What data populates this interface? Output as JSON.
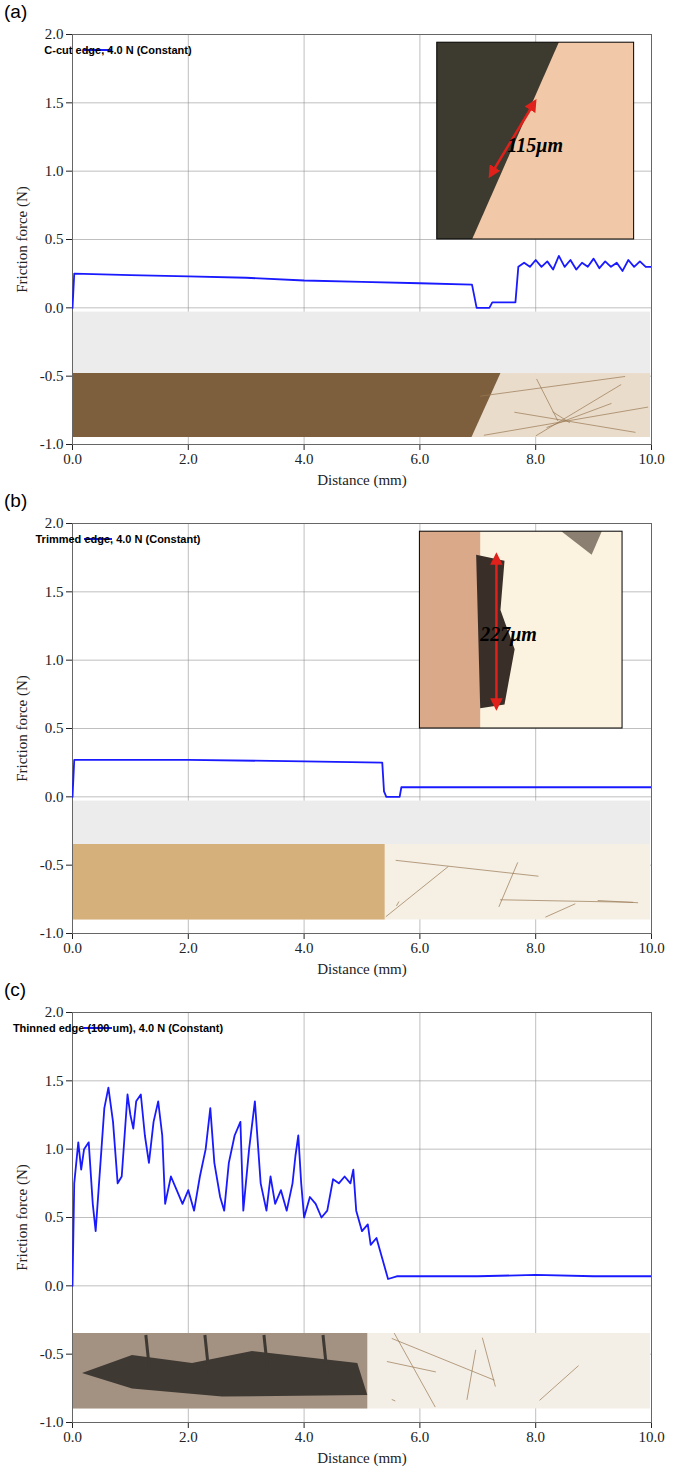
{
  "chart_data": [
    {
      "panel": "(a)",
      "type": "line",
      "xlabel": "Distance (mm)",
      "ylabel": "Friction force (N)",
      "xlim": [
        0,
        10
      ],
      "ylim": [
        -1,
        2
      ],
      "xticks": [
        {
          "value": 0,
          "label": "0.0"
        },
        {
          "value": 2,
          "label": "2.0"
        },
        {
          "value": 4,
          "label": "4.0"
        },
        {
          "value": 6,
          "label": "6.0"
        },
        {
          "value": 8,
          "label": "8.0"
        },
        {
          "value": 10,
          "label": "10.0"
        }
      ],
      "yticks": [
        {
          "value": -1,
          "label": "-1.0"
        },
        {
          "value": -0.5,
          "label": "-0.5"
        },
        {
          "value": 0,
          "label": "0.0"
        },
        {
          "value": 0.5,
          "label": "0.5"
        },
        {
          "value": 1,
          "label": "1.0"
        },
        {
          "value": 1.5,
          "label": "1.5"
        },
        {
          "value": 2,
          "label": "2.0"
        }
      ],
      "grid": true,
      "legend": "upper left",
      "annotation": "115μm",
      "x": [
        0,
        0.03,
        1,
        2,
        3,
        4,
        5,
        6,
        6.9,
        6.98,
        7.2,
        7.25,
        7.65,
        7.7,
        7.8,
        7.9,
        8.0,
        8.1,
        8.2,
        8.3,
        8.4,
        8.5,
        8.6,
        8.7,
        8.8,
        8.9,
        9.0,
        9.1,
        9.2,
        9.3,
        9.4,
        9.5,
        9.6,
        9.7,
        9.8,
        9.9,
        10
      ],
      "series": [
        {
          "name": "C-cut edge, 4.0 N (Constant)",
          "color": "#1a1aff",
          "values": [
            0,
            0.25,
            0.24,
            0.23,
            0.22,
            0.2,
            0.19,
            0.18,
            0.17,
            0.0,
            0.0,
            0.04,
            0.04,
            0.3,
            0.33,
            0.3,
            0.35,
            0.3,
            0.34,
            0.28,
            0.38,
            0.3,
            0.35,
            0.28,
            0.33,
            0.3,
            0.36,
            0.29,
            0.34,
            0.3,
            0.33,
            0.27,
            0.35,
            0.3,
            0.34,
            0.3,
            0.3
          ]
        }
      ]
    },
    {
      "panel": "(b)",
      "type": "line",
      "xlabel": "Distance (mm)",
      "ylabel": "Friction force (N)",
      "xlim": [
        0,
        10
      ],
      "ylim": [
        -1,
        2
      ],
      "xticks": [
        {
          "value": 0,
          "label": "0.0"
        },
        {
          "value": 2,
          "label": "2.0"
        },
        {
          "value": 4,
          "label": "4.0"
        },
        {
          "value": 6,
          "label": "6.0"
        },
        {
          "value": 8,
          "label": "8.0"
        },
        {
          "value": 10,
          "label": "10.0"
        }
      ],
      "yticks": [
        {
          "value": -1,
          "label": "-1.0"
        },
        {
          "value": -0.5,
          "label": "-0.5"
        },
        {
          "value": 0,
          "label": "0.0"
        },
        {
          "value": 0.5,
          "label": "0.5"
        },
        {
          "value": 1,
          "label": "1.0"
        },
        {
          "value": 1.5,
          "label": "1.5"
        },
        {
          "value": 2,
          "label": "2.0"
        }
      ],
      "grid": true,
      "legend": "upper left",
      "annotation": "227μm",
      "x": [
        0,
        0.03,
        2,
        4,
        5.35,
        5.38,
        5.42,
        5.65,
        5.68,
        10
      ],
      "series": [
        {
          "name": "Trimmed edge, 4.0 N (Constant)",
          "color": "#1a1aff",
          "values": [
            0,
            0.27,
            0.27,
            0.26,
            0.25,
            0.04,
            0.0,
            0.0,
            0.07,
            0.07
          ]
        }
      ]
    },
    {
      "panel": "(c)",
      "type": "line",
      "xlabel": "Distance (mm)",
      "ylabel": "Friction force (N)",
      "xlim": [
        0,
        10
      ],
      "ylim": [
        -1,
        2
      ],
      "xticks": [
        {
          "value": 0,
          "label": "0.0"
        },
        {
          "value": 2,
          "label": "2.0"
        },
        {
          "value": 4,
          "label": "4.0"
        },
        {
          "value": 6,
          "label": "6.0"
        },
        {
          "value": 8,
          "label": "8.0"
        },
        {
          "value": 10,
          "label": "10.0"
        }
      ],
      "yticks": [
        {
          "value": -1,
          "label": "-1.0"
        },
        {
          "value": -0.5,
          "label": "-0.5"
        },
        {
          "value": 0,
          "label": "0.0"
        },
        {
          "value": 0.5,
          "label": "0.5"
        },
        {
          "value": 1,
          "label": "1.0"
        },
        {
          "value": 1.5,
          "label": "1.5"
        },
        {
          "value": 2,
          "label": "2.0"
        }
      ],
      "grid": true,
      "legend": "upper left",
      "x": [
        0,
        0.03,
        0.1,
        0.15,
        0.2,
        0.28,
        0.35,
        0.4,
        0.45,
        0.5,
        0.55,
        0.62,
        0.7,
        0.78,
        0.85,
        0.95,
        1.0,
        1.05,
        1.1,
        1.18,
        1.25,
        1.32,
        1.4,
        1.48,
        1.55,
        1.6,
        1.7,
        1.8,
        1.9,
        2.0,
        2.1,
        2.2,
        2.3,
        2.38,
        2.45,
        2.55,
        2.62,
        2.7,
        2.8,
        2.9,
        2.95,
        3.05,
        3.15,
        3.25,
        3.35,
        3.42,
        3.5,
        3.6,
        3.7,
        3.8,
        3.85,
        3.9,
        3.95,
        4.0,
        4.1,
        4.2,
        4.3,
        4.4,
        4.5,
        4.6,
        4.7,
        4.8,
        4.85,
        4.9,
        5.0,
        5.1,
        5.15,
        5.25,
        5.35,
        5.45,
        5.6,
        7.0,
        8.0,
        9.0,
        10
      ],
      "series": [
        {
          "name": "Thinned edge (100 um), 4.0 N (Constant)",
          "color": "#1a1aff",
          "values": [
            0,
            0.75,
            1.05,
            0.85,
            1.0,
            1.05,
            0.6,
            0.4,
            0.7,
            1.0,
            1.3,
            1.45,
            1.2,
            0.75,
            0.8,
            1.4,
            1.25,
            1.15,
            1.35,
            1.4,
            1.1,
            0.9,
            1.2,
            1.35,
            1.1,
            0.6,
            0.8,
            0.7,
            0.6,
            0.7,
            0.55,
            0.8,
            1.0,
            1.3,
            0.9,
            0.65,
            0.55,
            0.9,
            1.1,
            1.2,
            0.55,
            1.0,
            1.35,
            0.75,
            0.55,
            0.8,
            0.6,
            0.7,
            0.55,
            0.75,
            0.95,
            1.1,
            0.75,
            0.5,
            0.65,
            0.6,
            0.5,
            0.55,
            0.78,
            0.75,
            0.8,
            0.75,
            0.85,
            0.55,
            0.4,
            0.45,
            0.3,
            0.35,
            0.2,
            0.05,
            0.07,
            0.07,
            0.08,
            0.07,
            0.07
          ]
        }
      ]
    }
  ]
}
